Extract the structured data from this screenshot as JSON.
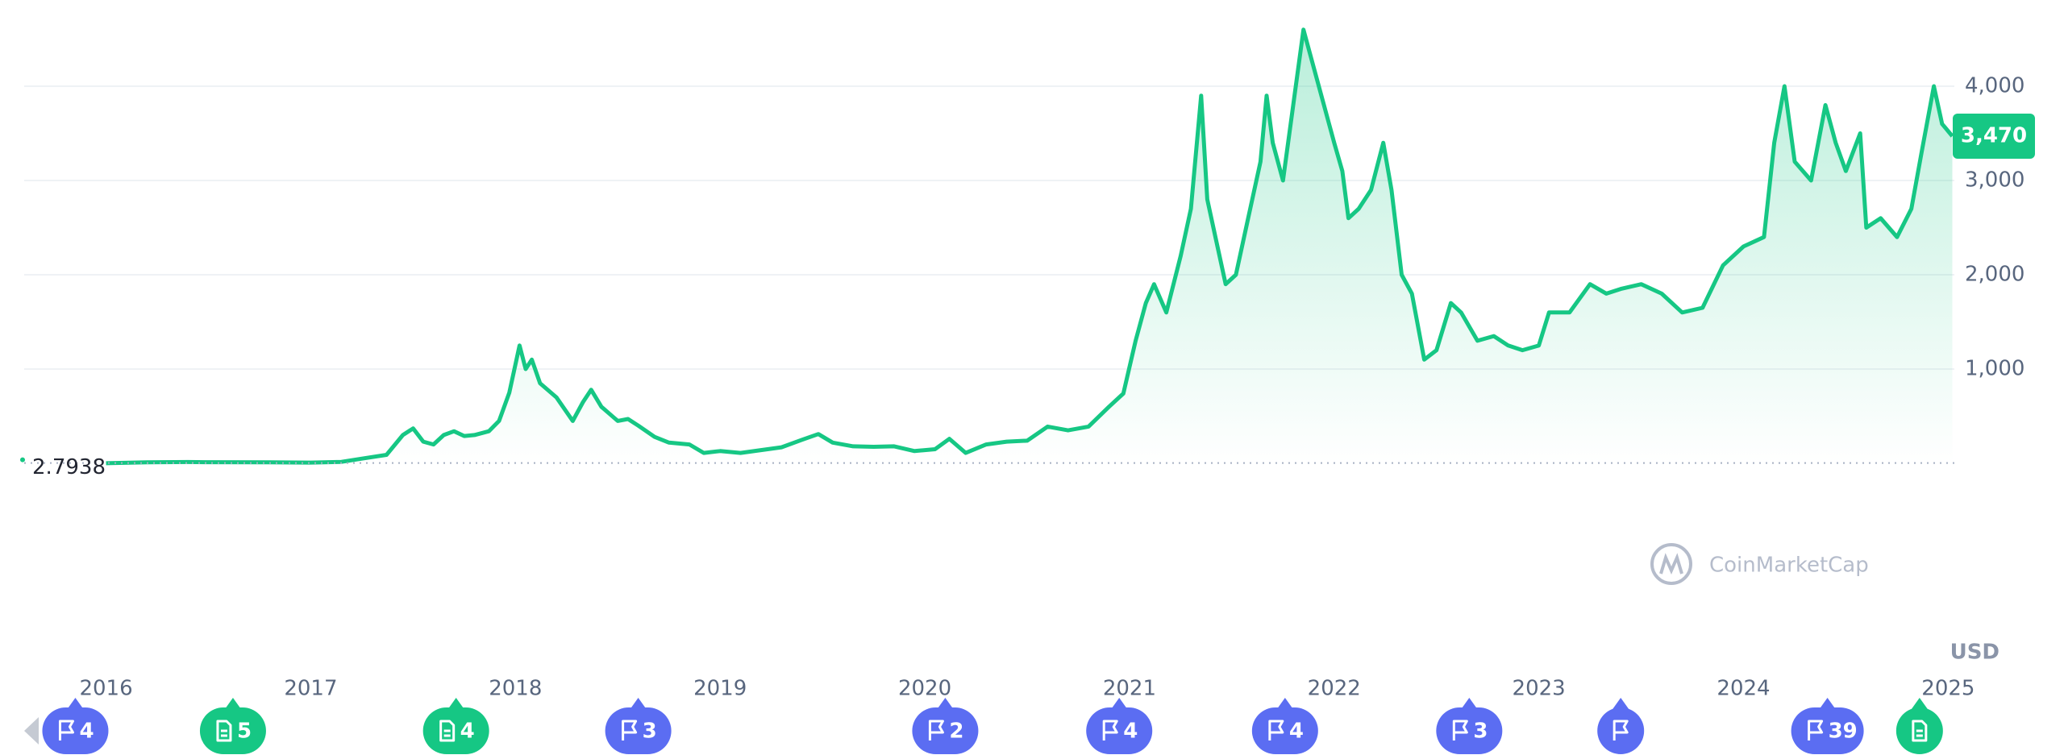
{
  "chart_data": {
    "type": "line",
    "watermark": "CoinMarketCap",
    "y_unit": "USD",
    "start_value": 2.7938,
    "current_value": {
      "value": 3470,
      "label": "3,470"
    },
    "xlim": [
      2015.6,
      2025.03
    ],
    "xticks": [
      2016,
      2017,
      2018,
      2019,
      2020,
      2021,
      2022,
      2023,
      2024,
      2025
    ],
    "ylim": [
      0,
      4650
    ],
    "yticks": [
      {
        "value": 1000,
        "label": "1,000"
      },
      {
        "value": 2000,
        "label": "2,000"
      },
      {
        "value": 3000,
        "label": "3,000"
      },
      {
        "value": 4000,
        "label": "4,000"
      }
    ],
    "grid": true,
    "series": [
      {
        "color": "#16c784",
        "x": [
          2016.0,
          2016.2,
          2016.4,
          2016.5,
          2016.8,
          2017.0,
          2017.15,
          2017.25,
          2017.37,
          2017.45,
          2017.5,
          2017.55,
          2017.6,
          2017.65,
          2017.7,
          2017.75,
          2017.8,
          2017.87,
          2017.92,
          2017.97,
          2018.02,
          2018.05,
          2018.08,
          2018.12,
          2018.2,
          2018.28,
          2018.33,
          2018.37,
          2018.42,
          2018.5,
          2018.55,
          2018.6,
          2018.68,
          2018.75,
          2018.85,
          2018.92,
          2019.0,
          2019.1,
          2019.2,
          2019.3,
          2019.4,
          2019.48,
          2019.55,
          2019.65,
          2019.75,
          2019.85,
          2019.95,
          2020.05,
          2020.12,
          2020.2,
          2020.3,
          2020.4,
          2020.5,
          2020.6,
          2020.7,
          2020.8,
          2020.9,
          2020.97,
          2021.03,
          2021.08,
          2021.12,
          2021.18,
          2021.25,
          2021.3,
          2021.35,
          2021.38,
          2021.42,
          2021.47,
          2021.52,
          2021.58,
          2021.64,
          2021.67,
          2021.7,
          2021.75,
          2021.8,
          2021.85,
          2021.9,
          2021.95,
          2022.0,
          2022.04,
          2022.07,
          2022.12,
          2022.18,
          2022.24,
          2022.28,
          2022.33,
          2022.38,
          2022.44,
          2022.5,
          2022.57,
          2022.62,
          2022.7,
          2022.78,
          2022.85,
          2022.92,
          2023.0,
          2023.05,
          2023.15,
          2023.25,
          2023.33,
          2023.4,
          2023.5,
          2023.6,
          2023.7,
          2023.8,
          2023.9,
          2024.0,
          2024.1,
          2024.15,
          2024.2,
          2024.25,
          2024.33,
          2024.4,
          2024.45,
          2024.5,
          2024.57,
          2024.6,
          2024.67,
          2024.75,
          2024.82,
          2024.87,
          2024.93,
          2024.97,
          2025.02
        ],
        "values": [
          1,
          11,
          14,
          12,
          10,
          8,
          15,
          50,
          90,
          300,
          370,
          230,
          200,
          300,
          340,
          290,
          300,
          340,
          450,
          750,
          1250,
          1000,
          1100,
          850,
          700,
          450,
          650,
          780,
          600,
          450,
          470,
          400,
          280,
          220,
          200,
          110,
          130,
          110,
          140,
          170,
          250,
          310,
          220,
          180,
          175,
          180,
          130,
          150,
          260,
          110,
          200,
          230,
          240,
          390,
          350,
          390,
          600,
          740,
          1300,
          1700,
          1900,
          1600,
          2200,
          2700,
          3900,
          2800,
          2400,
          1900,
          2000,
          2600,
          3200,
          3900,
          3400,
          3000,
          3800,
          4600,
          4200,
          3800,
          3400,
          3100,
          2600,
          2700,
          2900,
          3400,
          2900,
          2000,
          1800,
          1100,
          1200,
          1700,
          1600,
          1300,
          1350,
          1250,
          1200,
          1250,
          1600,
          1600,
          1900,
          1800,
          1850,
          1900,
          1800,
          1600,
          1650,
          2100,
          2300,
          2400,
          3400,
          4000,
          3200,
          3000,
          3800,
          3400,
          3100,
          3500,
          2500,
          2600,
          2400,
          2700,
          3300,
          4000,
          3600,
          3470
        ]
      }
    ],
    "events": [
      {
        "x": 2015.85,
        "icon": "flag",
        "count": 4
      },
      {
        "x": 2016.62,
        "icon": "document",
        "count": 5
      },
      {
        "x": 2017.71,
        "icon": "document",
        "count": 4
      },
      {
        "x": 2018.6,
        "icon": "flag",
        "count": 3
      },
      {
        "x": 2020.1,
        "icon": "flag",
        "count": 2
      },
      {
        "x": 2020.95,
        "icon": "flag",
        "count": 4
      },
      {
        "x": 2021.76,
        "icon": "flag",
        "count": 4
      },
      {
        "x": 2022.66,
        "icon": "flag",
        "count": 3
      },
      {
        "x": 2023.4,
        "icon": "flag"
      },
      {
        "x": 2024.41,
        "icon": "flag",
        "count": 39
      },
      {
        "x": 2024.86,
        "icon": "document"
      }
    ]
  }
}
